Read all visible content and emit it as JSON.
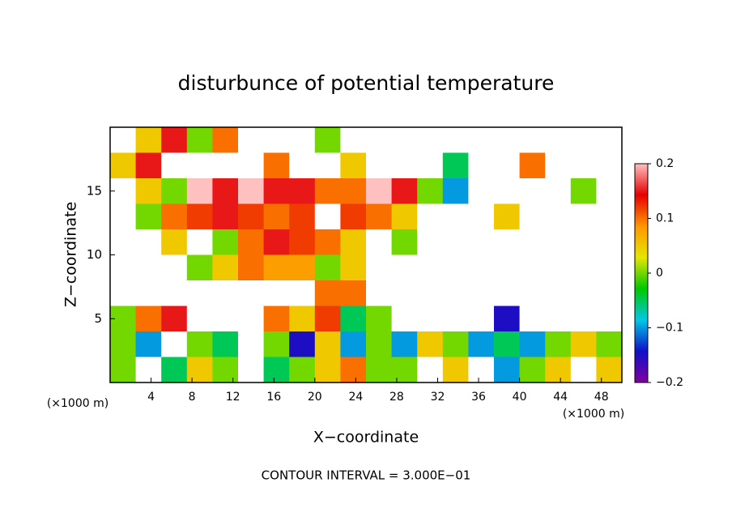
{
  "chart_data": {
    "type": "heatmap",
    "title": "disturbunce of potential temperature",
    "x_label": "X−coordinate",
    "y_label": "Z−coordinate",
    "x_unit": "(×1000 m)",
    "footer": "CONTOUR INTERVAL = 3.000E−01",
    "xlim": [
      0,
      50
    ],
    "ylim": [
      0,
      20
    ],
    "xticks": [
      4,
      8,
      12,
      16,
      20,
      24,
      28,
      32,
      36,
      40,
      44,
      48
    ],
    "yticks": [
      5,
      10,
      15
    ],
    "clim": [
      -0.2,
      0.2
    ],
    "cticks": [
      {
        "value": 0.2,
        "label": "0.2"
      },
      {
        "value": 0.1,
        "label": "0.1"
      },
      0,
      {
        "value": -0.1,
        "label": "−0.1"
      },
      {
        "value": -0.2,
        "label": "−0.2"
      }
    ],
    "colors": [
      "#8000a0",
      "#1010c8",
      "#00c8e6",
      "#00c800",
      "#e6e600",
      "#ff9600",
      "#e60000",
      "#ffc0c0"
    ],
    "x": [
      1.25,
      3.75,
      6.25,
      8.75,
      11.25,
      13.75,
      16.25,
      18.75,
      21.25,
      23.75,
      26.25,
      28.75,
      31.25,
      33.75,
      36.25,
      38.75,
      41.25,
      43.75,
      46.25,
      48.75
    ],
    "y": [
      19,
      17,
      15,
      13,
      11,
      9,
      7,
      5,
      3,
      1
    ],
    "values": [
      [
        0.25,
        0.05,
        0.15,
        0.0,
        0.1,
        0.25,
        0.25,
        0.25,
        0.0,
        0.25,
        0.25,
        0.25,
        0.25,
        0.25,
        0.25,
        0.25,
        0.25,
        0.25,
        0.25,
        0.25
      ],
      [
        0.05,
        0.15,
        0.25,
        0.25,
        0.25,
        0.25,
        0.1,
        0.25,
        0.25,
        0.05,
        0.25,
        0.25,
        0.25,
        -0.05,
        0.25,
        0.25,
        0.1,
        0.25,
        0.25,
        0.25
      ],
      [
        0.25,
        0.05,
        0.0,
        0.2,
        0.15,
        0.2,
        0.15,
        0.15,
        0.1,
        0.1,
        0.2,
        0.15,
        0.0,
        -0.1,
        0.25,
        0.25,
        0.25,
        0.25,
        0.0,
        0.25
      ],
      [
        0.25,
        0.0,
        0.1,
        0.12,
        0.15,
        0.12,
        0.1,
        0.12,
        0.25,
        0.12,
        0.1,
        0.05,
        0.25,
        0.25,
        0.25,
        0.05,
        0.25,
        0.25,
        0.25,
        0.25
      ],
      [
        0.25,
        0.25,
        0.05,
        0.25,
        0.0,
        0.1,
        0.15,
        0.12,
        0.1,
        0.05,
        0.25,
        0.0,
        0.25,
        0.25,
        0.25,
        0.25,
        0.25,
        0.25,
        0.25,
        0.25
      ],
      [
        0.25,
        0.25,
        0.25,
        0.0,
        0.05,
        0.1,
        0.08,
        0.08,
        0.0,
        0.05,
        0.25,
        0.25,
        0.25,
        0.25,
        0.25,
        0.25,
        0.25,
        0.25,
        0.25,
        0.25
      ],
      [
        0.25,
        0.25,
        0.25,
        0.25,
        0.25,
        0.25,
        0.25,
        0.25,
        0.1,
        0.1,
        0.25,
        0.25,
        0.25,
        0.25,
        0.25,
        0.25,
        0.25,
        0.25,
        0.25,
        0.25
      ],
      [
        0.0,
        0.1,
        0.15,
        0.25,
        0.25,
        0.25,
        0.1,
        0.05,
        0.12,
        -0.05,
        0.0,
        0.25,
        0.25,
        0.25,
        0.25,
        -0.15,
        0.25,
        0.25,
        0.25,
        0.25
      ],
      [
        0.0,
        -0.1,
        0.25,
        0.0,
        -0.05,
        0.25,
        0.0,
        -0.15,
        0.05,
        -0.1,
        0.0,
        -0.1,
        0.05,
        0.0,
        -0.1,
        -0.05,
        -0.1,
        0.0,
        0.05,
        0.0
      ],
      [
        0.0,
        0.25,
        -0.05,
        0.05,
        0.0,
        0.25,
        -0.05,
        0.0,
        0.05,
        0.1,
        0.0,
        0.0,
        0.25,
        0.05,
        0.25,
        -0.1,
        0.0,
        0.05,
        0.25,
        0.05
      ]
    ]
  }
}
